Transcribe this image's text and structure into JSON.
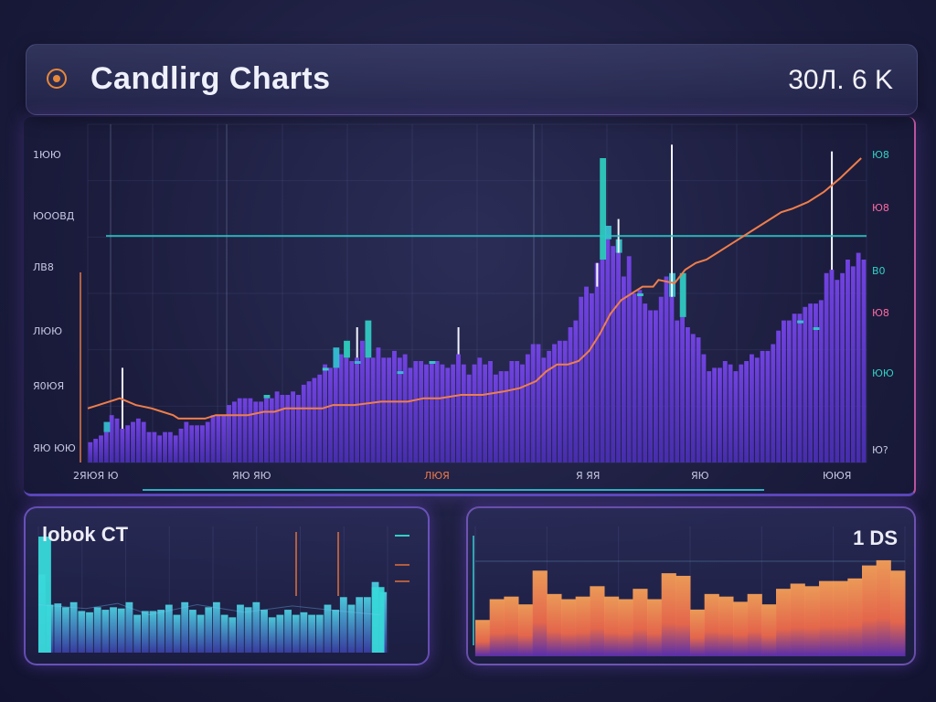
{
  "header": {
    "title": "Candlirg Charts",
    "value": "30Л. 6  K"
  },
  "chart_data": [
    {
      "type": "bar",
      "name": "main",
      "y_labels_left": [
        "1ЮЮ",
        "ЮООВД",
        "ЛВ8",
        "ЛЮЮ",
        "Я0ЮЯ",
        "ЯЮ ЮЮ"
      ],
      "y_labels_right": [
        "Ю8",
        "Ю8",
        "В0",
        "Ю8",
        "ЮЮ",
        "Ю?"
      ],
      "x_labels": [
        "2ЯЮЯ Ю",
        "ЯЮ ЯЮ",
        "ЛЮЯ",
        "Я ЯЯ",
        "ЯЮ",
        "ЮЮЯ"
      ],
      "ylim": [
        0,
        100
      ],
      "bars": [
        6,
        7,
        8,
        9,
        14,
        13,
        10,
        11,
        12,
        13,
        12,
        9,
        9,
        8,
        9,
        9,
        8,
        10,
        12,
        11,
        11,
        11,
        12,
        14,
        14,
        14,
        17,
        18,
        19,
        19,
        19,
        18,
        18,
        19,
        19,
        21,
        20,
        20,
        21,
        20,
        23,
        24,
        25,
        26,
        29,
        28,
        28,
        32,
        31,
        30,
        31,
        36,
        31,
        31,
        34,
        31,
        31,
        33,
        31,
        32,
        28,
        30,
        30,
        29,
        30,
        30,
        29,
        28,
        29,
        32,
        29,
        26,
        29,
        31,
        29,
        30,
        26,
        27,
        27,
        30,
        30,
        29,
        32,
        35,
        35,
        31,
        33,
        35,
        36,
        36,
        40,
        42,
        49,
        52,
        50,
        59,
        60,
        66,
        64,
        62,
        55,
        61,
        50,
        51,
        47,
        45,
        45,
        49,
        55,
        49,
        42,
        43,
        40,
        38,
        37,
        32,
        27,
        28,
        28,
        30,
        29,
        27,
        29,
        30,
        32,
        31,
        33,
        33,
        35,
        39,
        42,
        42,
        44,
        44,
        46,
        47,
        47,
        48,
        56,
        57,
        54,
        56,
        60,
        58,
        62,
        60
      ],
      "accent_bars": [
        {
          "i": 3,
          "h": 12,
          "color": "#37c3d6"
        },
        {
          "i": 33,
          "h": 20,
          "color": "#34d3c8"
        },
        {
          "i": 44,
          "h": 28,
          "color": "#3adbc9"
        },
        {
          "i": 46,
          "h": 34,
          "color": "#34c8d9"
        },
        {
          "i": 48,
          "h": 36,
          "color": "#2fd6c3"
        },
        {
          "i": 50,
          "h": 30,
          "color": "#35c0d8"
        },
        {
          "i": 52,
          "h": 42,
          "color": "#34d2ca"
        },
        {
          "i": 58,
          "h": 27,
          "color": "#37c6d5"
        },
        {
          "i": 64,
          "h": 30,
          "color": "#33d1c6"
        },
        {
          "i": 96,
          "h": 90,
          "color": "#2fd3c4"
        },
        {
          "i": 97,
          "h": 70,
          "color": "#3bc9d6"
        },
        {
          "i": 99,
          "h": 66,
          "color": "#39cfd0"
        },
        {
          "i": 103,
          "h": 50,
          "color": "#31d5c7"
        },
        {
          "i": 109,
          "h": 56,
          "color": "#37c9d6"
        },
        {
          "i": 111,
          "h": 56,
          "color": "#31d1c8"
        },
        {
          "i": 133,
          "h": 42,
          "color": "#36cbd4"
        },
        {
          "i": 136,
          "h": 40,
          "color": "#31d0c7"
        }
      ],
      "wicks": [
        {
          "i": 6,
          "h": 28
        },
        {
          "i": 50,
          "h": 40
        },
        {
          "i": 69,
          "h": 40
        },
        {
          "i": 95,
          "h": 52
        },
        {
          "i": 96,
          "h": 60
        },
        {
          "i": 99,
          "h": 72
        },
        {
          "i": 109,
          "h": 94
        },
        {
          "i": 139,
          "h": 92
        }
      ],
      "orange_line": [
        [
          0,
          16
        ],
        [
          4,
          18
        ],
        [
          6,
          19
        ],
        [
          9,
          17
        ],
        [
          12,
          16
        ],
        [
          14,
          15
        ],
        [
          16,
          14
        ],
        [
          17,
          13
        ],
        [
          19,
          13
        ],
        [
          22,
          13
        ],
        [
          24,
          14
        ],
        [
          26,
          14
        ],
        [
          30,
          14
        ],
        [
          33,
          15
        ],
        [
          35,
          15
        ],
        [
          37,
          16
        ],
        [
          40,
          16
        ],
        [
          44,
          16
        ],
        [
          46,
          17
        ],
        [
          50,
          17
        ],
        [
          55,
          18
        ],
        [
          60,
          18
        ],
        [
          63,
          19
        ],
        [
          66,
          19
        ],
        [
          70,
          20
        ],
        [
          74,
          20
        ],
        [
          78,
          21
        ],
        [
          81,
          22
        ],
        [
          84,
          24
        ],
        [
          86,
          27
        ],
        [
          88,
          29
        ],
        [
          90,
          29
        ],
        [
          92,
          30
        ],
        [
          94,
          33
        ],
        [
          96,
          38
        ],
        [
          98,
          44
        ],
        [
          100,
          48
        ],
        [
          102,
          50
        ],
        [
          104,
          52
        ],
        [
          106,
          52
        ],
        [
          107,
          54
        ],
        [
          110,
          53
        ],
        [
          112,
          57
        ],
        [
          114,
          59
        ],
        [
          116,
          60
        ],
        [
          118,
          62
        ],
        [
          120,
          64
        ],
        [
          122,
          66
        ],
        [
          124,
          68
        ],
        [
          126,
          70
        ],
        [
          128,
          72
        ],
        [
          130,
          74
        ],
        [
          132,
          75
        ],
        [
          135,
          77
        ],
        [
          138,
          80
        ],
        [
          141,
          84
        ],
        [
          143,
          87
        ],
        [
          145,
          90
        ]
      ],
      "horizontal_line": 67
    },
    {
      "type": "bar",
      "name": "bottom-left",
      "title": "lobok CT",
      "ylim": [
        0,
        100
      ],
      "values": [
        62,
        38,
        39,
        36,
        40,
        33,
        32,
        36,
        34,
        36,
        35,
        40,
        30,
        33,
        33,
        34,
        38,
        30,
        40,
        34,
        30,
        36,
        40,
        30,
        28,
        38,
        36,
        40,
        34,
        28,
        30,
        34,
        30,
        32,
        30,
        30,
        38,
        34,
        44,
        38,
        44,
        44,
        56,
        48
      ],
      "accent_bars": [
        {
          "i": 0,
          "h": 92
        },
        {
          "i": 42,
          "h": 52
        }
      ],
      "trace": [
        [
          0,
          38
        ],
        [
          6,
          35
        ],
        [
          10,
          39
        ],
        [
          14,
          30
        ],
        [
          20,
          38
        ],
        [
          26,
          32
        ],
        [
          32,
          37
        ],
        [
          38,
          33
        ],
        [
          43,
          30
        ]
      ]
    },
    {
      "type": "bar",
      "name": "bottom-right",
      "title": "1 DS",
      "ylim": [
        0,
        100
      ],
      "values": [
        28,
        44,
        46,
        40,
        66,
        48,
        44,
        46,
        54,
        46,
        44,
        52,
        44,
        64,
        62,
        36,
        48,
        46,
        42,
        48,
        40,
        52,
        56,
        54,
        58,
        58,
        60,
        70,
        74,
        66
      ],
      "series_colors": [
        "#f2634c",
        "#f5a05a"
      ]
    }
  ]
}
